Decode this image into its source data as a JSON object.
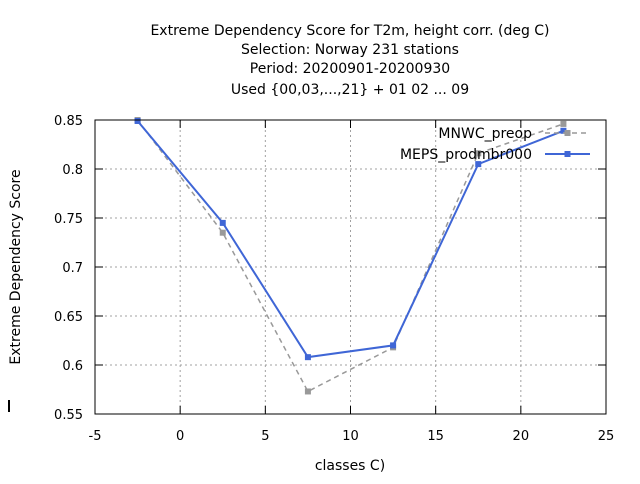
{
  "chart_data": {
    "type": "line",
    "title_lines": [
      "Extreme Dependency Score  for T2m, height corr. (deg C)",
      "Selection: Norway    231 stations",
      "Period: 20200901-20200930",
      "Used {00,03,...,21} + 01 02 ... 09"
    ],
    "xlabel": "classes C)",
    "ylabel": "Extreme Dependency Score",
    "xlim": [
      -5,
      25
    ],
    "ylim": [
      0.55,
      0.85
    ],
    "x_ticks": [
      -5,
      0,
      5,
      10,
      15,
      20,
      25
    ],
    "y_ticks": [
      0.55,
      0.6,
      0.65,
      0.7,
      0.75,
      0.8,
      0.85
    ],
    "x_tick_labels": [
      "-5",
      "0",
      "5",
      "10",
      "15",
      "20",
      "25"
    ],
    "y_tick_labels": [
      "0.55",
      "0.6",
      "0.65",
      "0.7",
      "0.75",
      "0.8",
      "0.85"
    ],
    "grid": true,
    "legend_position": "top-right",
    "series": [
      {
        "name": "MNWC_preop",
        "color": "#999999",
        "dashed": true,
        "x": [
          -2.5,
          2.5,
          7.5,
          12.5,
          17.5,
          22.5
        ],
        "y": [
          0.85,
          0.735,
          0.573,
          0.618,
          0.816,
          0.846
        ]
      },
      {
        "name": "MEPS_prodmbr000",
        "color": "#3f66d6",
        "dashed": false,
        "x": [
          -2.5,
          2.5,
          7.5,
          12.5,
          17.5,
          22.5
        ],
        "y": [
          0.849,
          0.745,
          0.608,
          0.62,
          0.805,
          0.839
        ]
      }
    ]
  }
}
